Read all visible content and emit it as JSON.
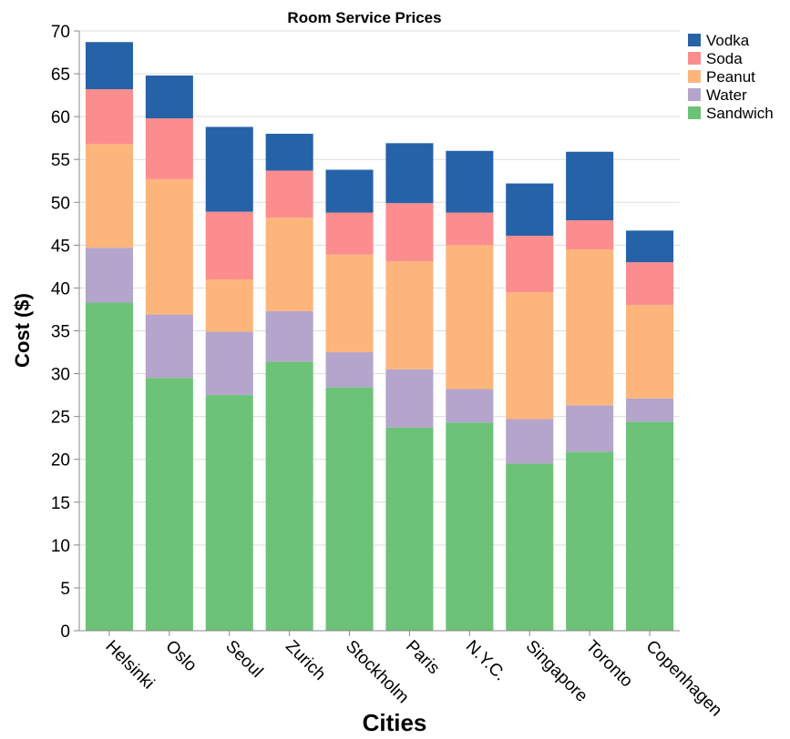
{
  "chart_data": {
    "type": "bar",
    "stacked": true,
    "title": "Room Service Prices",
    "xlabel": "Cities",
    "ylabel": "Cost ($)",
    "ylim": [
      0,
      70
    ],
    "yticks": [
      0,
      5,
      10,
      15,
      20,
      25,
      30,
      35,
      40,
      45,
      50,
      55,
      60,
      65,
      70
    ],
    "grid": true,
    "legend_position": "top-right",
    "categories": [
      "Helsinki",
      "Oslo",
      "Seoul",
      "Zurich",
      "Stockholm",
      "Paris",
      "N.Y.C.",
      "Singapore",
      "Toronto",
      "Copenhagen"
    ],
    "series": [
      {
        "name": "Sandwich",
        "color": "#6cc277",
        "values": [
          38.3,
          29.5,
          27.5,
          31.4,
          28.4,
          23.7,
          24.3,
          19.5,
          20.9,
          24.4
        ]
      },
      {
        "name": "Water",
        "color": "#b5a4cb",
        "values": [
          6.4,
          7.4,
          7.4,
          5.9,
          4.1,
          6.8,
          3.9,
          5.2,
          5.4,
          2.7
        ]
      },
      {
        "name": "Peanut",
        "color": "#fdb57c",
        "values": [
          12.1,
          15.8,
          6.1,
          10.9,
          11.4,
          12.6,
          16.8,
          14.8,
          18.2,
          10.9
        ]
      },
      {
        "name": "Soda",
        "color": "#fc8d8e",
        "values": [
          6.4,
          7.1,
          7.9,
          5.5,
          4.9,
          6.8,
          3.8,
          6.6,
          3.4,
          5.0
        ]
      },
      {
        "name": "Vodka",
        "color": "#2662a8",
        "values": [
          5.5,
          5.0,
          9.9,
          4.3,
          5.0,
          7.0,
          7.2,
          6.1,
          8.0,
          3.7
        ]
      }
    ],
    "legend_order": [
      "Vodka",
      "Soda",
      "Peanut",
      "Water",
      "Sandwich"
    ]
  }
}
